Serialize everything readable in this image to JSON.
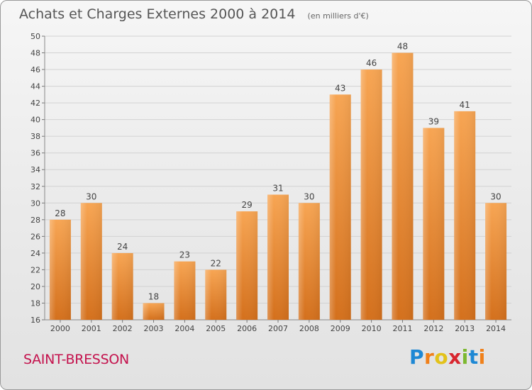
{
  "title": "Achats et Charges Externes 2000 à 2014",
  "subtitle": "(en milliers d'€)",
  "commune": "SAINT-BRESSON",
  "logo_letters": [
    "P",
    "r",
    "o",
    "x",
    "i",
    "t",
    "i"
  ],
  "colors": {
    "bar_light": "#f7a553",
    "bar_dark": "#d4701c",
    "commune": "#c4124d"
  },
  "chart_data": {
    "type": "bar",
    "title": "Achats et Charges Externes 2000 à 2014",
    "subtitle": "(en milliers d'€)",
    "categories": [
      "2000",
      "2001",
      "2002",
      "2003",
      "2004",
      "2005",
      "2006",
      "2007",
      "2008",
      "2009",
      "2010",
      "2011",
      "2012",
      "2013",
      "2014"
    ],
    "values": [
      28,
      30,
      24,
      18,
      23,
      22,
      29,
      31,
      30,
      43,
      46,
      48,
      39,
      41,
      30
    ],
    "ylim": [
      16,
      50
    ],
    "yticks": [
      16,
      18,
      20,
      22,
      24,
      26,
      28,
      30,
      32,
      34,
      36,
      38,
      40,
      42,
      44,
      46,
      48,
      50
    ],
    "grid": true,
    "xlabel": "",
    "ylabel": ""
  }
}
